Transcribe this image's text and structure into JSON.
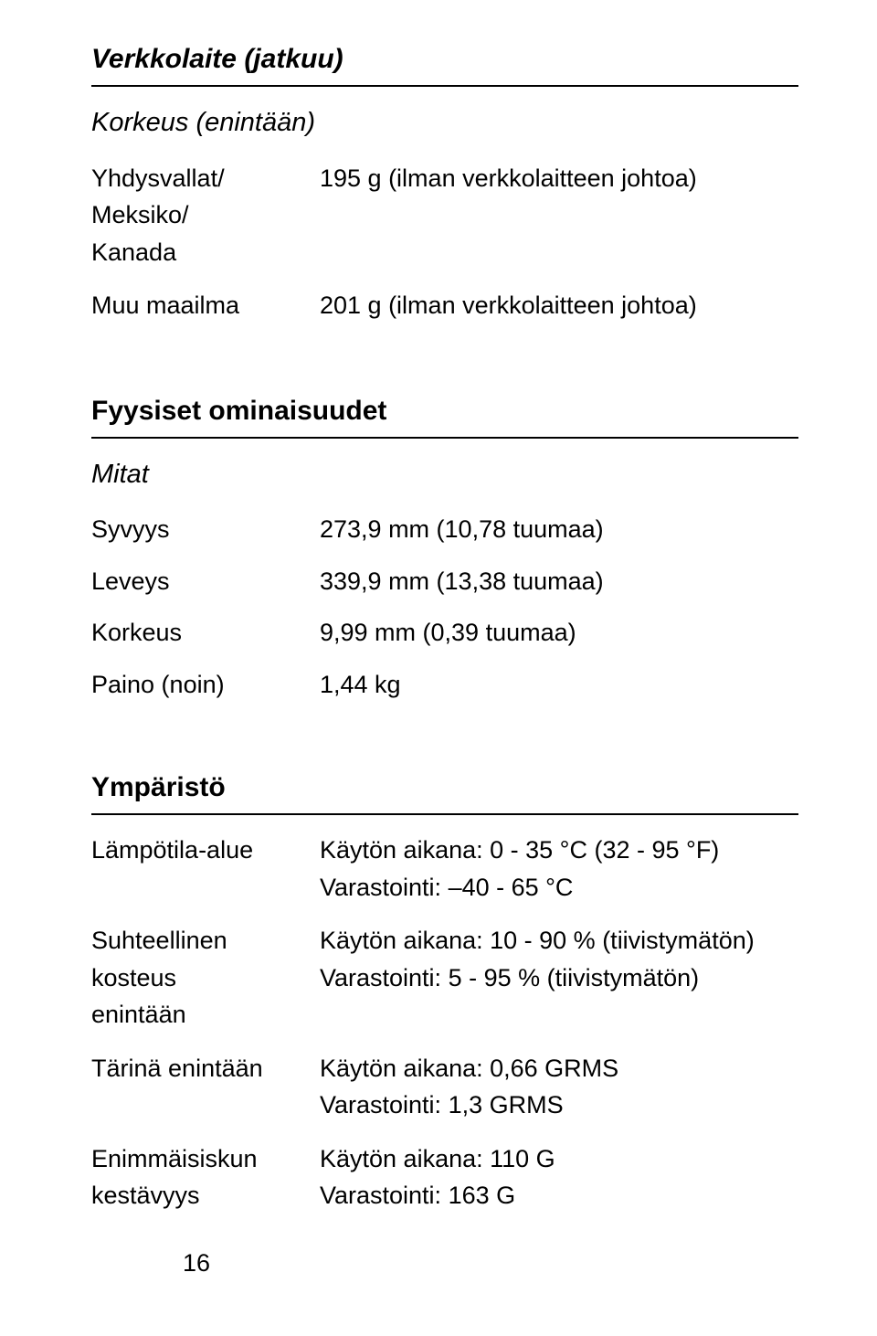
{
  "s1": {
    "title": "Verkkolaite (jatkuu)",
    "subhead": "Korkeus (enintään)",
    "rows": [
      {
        "label_lines": [
          "Yhdysvallat/",
          "Meksiko/",
          "Kanada"
        ],
        "value": "195 g (ilman verkkolaitteen johtoa)"
      },
      {
        "label_lines": [
          "Muu maailma"
        ],
        "value": "201 g (ilman verkkolaitteen johtoa)"
      }
    ]
  },
  "s2": {
    "title": "Fyysiset ominaisuudet",
    "subhead": "Mitat",
    "rows": [
      {
        "label": "Syvyys",
        "value": "273,9 mm (10,78 tuumaa)"
      },
      {
        "label": "Leveys",
        "value": "339,9 mm (13,38 tuumaa)"
      },
      {
        "label": "Korkeus",
        "value": "9,99 mm (0,39 tuumaa)"
      },
      {
        "label": "Paino (noin)",
        "value": "1,44 kg"
      }
    ]
  },
  "s3": {
    "title": "Ympäristö",
    "rows": [
      {
        "label_lines": [
          "Lämpötila-alue"
        ],
        "value_lines": [
          "Käytön aikana: 0 - 35 °C (32 - 95 °F)",
          "Varastointi: –40 - 65 °C"
        ]
      },
      {
        "label_lines": [
          "Suhteellinen",
          "kosteus",
          "enintään"
        ],
        "value_lines": [
          "Käytön aikana: 10 - 90 % (tiivistymätön)",
          "Varastointi: 5 - 95 % (tiivistymätön)"
        ]
      },
      {
        "label_lines": [
          "Tärinä enintään"
        ],
        "value_lines": [
          "Käytön aikana: 0,66 GRMS",
          "Varastointi: 1,3 GRMS"
        ]
      },
      {
        "label_lines": [
          "Enimmäisiskun",
          "kestävyys"
        ],
        "value_lines": [
          "Käytön aikana: 110 G",
          "Varastointi: 163 G"
        ]
      }
    ]
  },
  "page_number": "16",
  "colors": {
    "text": "#000000",
    "bg": "#ffffff",
    "rule": "#000000"
  },
  "fontsizes": {
    "title": 30,
    "body": 27
  }
}
